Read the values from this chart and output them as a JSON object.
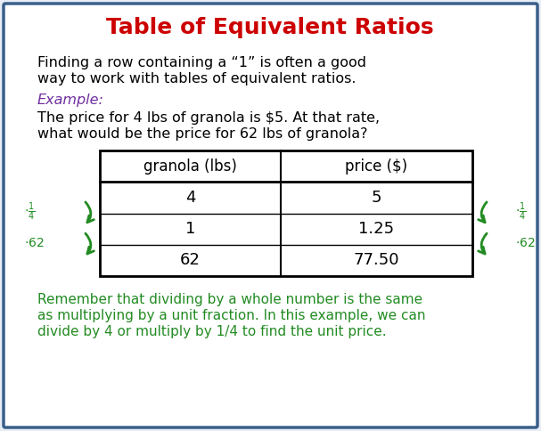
{
  "title": "Table of Equivalent Ratios",
  "title_color": "#cc0000",
  "border_color": "#3a5f8a",
  "bg_color": "#e8eef5",
  "body_bg": "#ffffff",
  "intro_text_l1": "Finding a row containing a “1” is often a good",
  "intro_text_l2": "way to work with tables of equivalent ratios.",
  "example_label": "Example:",
  "example_color": "#7030a0",
  "problem_text_l1": "The price for 4 lbs of granola is $5. At that rate,",
  "problem_text_l2": "what would be the price for 62 lbs of granola?",
  "table_headers": [
    "granola (lbs)",
    "price ($)"
  ],
  "table_rows": [
    [
      "4",
      "5"
    ],
    [
      "1",
      "1.25"
    ],
    [
      "62",
      "77.50"
    ]
  ],
  "arrow_color": "#228B22",
  "note_l1": "Remember that dividing by a whole number is the same",
  "note_l2": "as multiplying by a unit fraction. In this example, we can",
  "note_l3": "divide by 4 or multiply by 1/4 to find the unit price.",
  "note_color": "#228B22"
}
